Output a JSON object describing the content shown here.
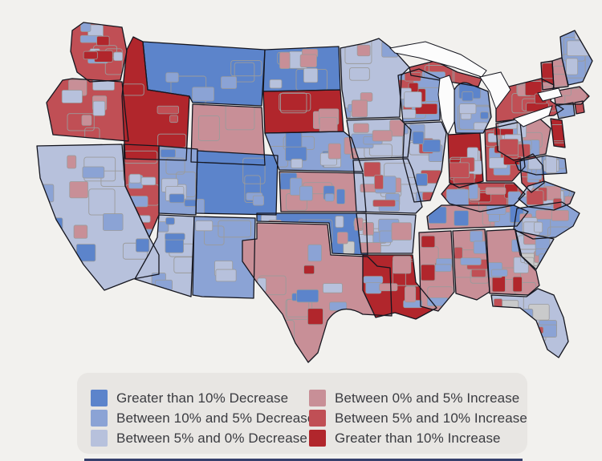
{
  "page": {
    "background": "#f2f1ee",
    "bottom_accent_color": "#36406d"
  },
  "legend": {
    "panel_color": "#e8e6e3",
    "text_color": "#3a3b40",
    "items": [
      {
        "id": "dec_gt10",
        "label": "Greater than 10% Decrease",
        "color": "#5c84cb"
      },
      {
        "id": "dec_5_10",
        "label": "Between 10% and 5% Decrease",
        "color": "#8ba3d5"
      },
      {
        "id": "dec_0_5",
        "label": "Between 5% and 0% Decrease",
        "color": "#b7c1dc"
      },
      {
        "id": "inc_0_5",
        "label": "Between 0% and 5% Increase",
        "color": "#c88f97"
      },
      {
        "id": "inc_5_10",
        "label": "Between 5% and 10% Increase",
        "color": "#c04f55"
      },
      {
        "id": "inc_gt10",
        "label": "Greater than 10% Increase",
        "color": "#b1262c"
      }
    ]
  },
  "map": {
    "type": "choropleth",
    "state_border_color": "#15161f",
    "region_border_color": "#9b9b9b",
    "no_data_color": "#c9cacb",
    "water_color": "#fcfcfc"
  },
  "chart_data": {
    "type": "choropleth_map",
    "regions": [
      {
        "state": "WA",
        "dominant": "inc_5_10",
        "patches": [
          "dec_0_5",
          "dec_5_10",
          "inc_gt10"
        ]
      },
      {
        "state": "OR",
        "dominant": "inc_5_10",
        "patches": [
          "inc_0_5",
          "dec_0_5"
        ]
      },
      {
        "state": "CA",
        "dominant": "dec_0_5",
        "patches": [
          "inc_0_5",
          "dec_5_10",
          "dec_gt10"
        ]
      },
      {
        "state": "NV",
        "dominant": "inc_5_10",
        "patches": [
          "dec_5_10",
          "dec_0_5"
        ]
      },
      {
        "state": "ID",
        "dominant": "inc_gt10",
        "patches": [
          "inc_5_10"
        ]
      },
      {
        "state": "MT",
        "dominant": "dec_gt10",
        "patches": [
          "dec_5_10"
        ]
      },
      {
        "state": "WY",
        "dominant": "inc_0_5",
        "patches": []
      },
      {
        "state": "UT",
        "dominant": "dec_5_10",
        "patches": [
          "dec_0_5",
          "dec_gt10"
        ]
      },
      {
        "state": "CO",
        "dominant": "dec_gt10",
        "patches": [
          "dec_5_10"
        ]
      },
      {
        "state": "AZ",
        "dominant": "dec_0_5",
        "patches": [
          "dec_5_10",
          "dec_gt10"
        ]
      },
      {
        "state": "NM",
        "dominant": "dec_5_10",
        "patches": [
          "dec_0_5"
        ]
      },
      {
        "state": "ND",
        "dominant": "dec_gt10",
        "patches": [
          "dec_0_5",
          "inc_0_5"
        ]
      },
      {
        "state": "SD",
        "dominant": "inc_gt10",
        "patches": [
          "inc_0_5"
        ]
      },
      {
        "state": "NE",
        "dominant": "dec_5_10",
        "patches": [
          "dec_gt10",
          "dec_0_5",
          "inc_0_5"
        ]
      },
      {
        "state": "KS",
        "dominant": "inc_0_5",
        "patches": [
          "dec_gt10",
          "dec_5_10"
        ]
      },
      {
        "state": "OK",
        "dominant": "dec_gt10",
        "patches": [
          "dec_0_5",
          "no_data",
          "inc_0_5"
        ]
      },
      {
        "state": "TX",
        "dominant": "inc_0_5",
        "patches": [
          "dec_0_5",
          "dec_5_10",
          "dec_gt10",
          "inc_gt10"
        ]
      },
      {
        "state": "MN",
        "dominant": "dec_0_5",
        "patches": [
          "dec_5_10",
          "inc_0_5"
        ]
      },
      {
        "state": "IA",
        "dominant": "dec_0_5",
        "patches": [
          "dec_5_10",
          "inc_0_5"
        ]
      },
      {
        "state": "MO",
        "dominant": "dec_0_5",
        "patches": [
          "inc_0_5",
          "dec_5_10",
          "inc_5_10"
        ]
      },
      {
        "state": "AR",
        "dominant": "dec_0_5",
        "patches": [
          "dec_5_10",
          "inc_0_5"
        ]
      },
      {
        "state": "LA",
        "dominant": "inc_gt10",
        "patches": [
          "dec_5_10",
          "inc_0_5"
        ]
      },
      {
        "state": "WI",
        "dominant": "dec_5_10",
        "patches": [
          "inc_5_10",
          "inc_gt10",
          "dec_0_5"
        ]
      },
      {
        "state": "MI",
        "dominant": "dec_5_10",
        "patches": [
          "dec_gt10",
          "dec_0_5"
        ]
      },
      {
        "state": "UP",
        "dominant": "inc_5_10",
        "patches": [
          "dec_5_10"
        ]
      },
      {
        "state": "IL",
        "dominant": "dec_0_5",
        "patches": [
          "dec_5_10",
          "inc_5_10",
          "dec_gt10"
        ]
      },
      {
        "state": "IN",
        "dominant": "inc_gt10",
        "patches": [
          "dec_0_5",
          "inc_5_10"
        ]
      },
      {
        "state": "OH",
        "dominant": "inc_5_10",
        "patches": [
          "dec_5_10",
          "dec_0_5",
          "inc_gt10"
        ]
      },
      {
        "state": "WV",
        "dominant": "inc_5_10",
        "patches": [
          "dec_5_10"
        ]
      },
      {
        "state": "KY",
        "dominant": "inc_5_10",
        "patches": [
          "inc_gt10",
          "inc_0_5",
          "dec_5_10"
        ]
      },
      {
        "state": "VA",
        "dominant": "dec_5_10",
        "patches": [
          "dec_0_5",
          "inc_0_5",
          "inc_5_10"
        ]
      },
      {
        "state": "TN",
        "dominant": "inc_0_5",
        "patches": [
          "dec_5_10",
          "dec_gt10"
        ]
      },
      {
        "state": "NC",
        "dominant": "dec_5_10",
        "patches": [
          "inc_0_5",
          "dec_0_5"
        ]
      },
      {
        "state": "SC",
        "dominant": "dec_0_5",
        "patches": [
          "no_data",
          "inc_0_5",
          "dec_5_10"
        ]
      },
      {
        "state": "GA",
        "dominant": "inc_0_5",
        "patches": [
          "inc_gt10",
          "dec_5_10",
          "dec_0_5"
        ]
      },
      {
        "state": "AL",
        "dominant": "inc_0_5",
        "patches": [
          "inc_5_10",
          "dec_5_10"
        ]
      },
      {
        "state": "MS",
        "dominant": "inc_0_5",
        "patches": [
          "inc_gt10",
          "dec_5_10"
        ]
      },
      {
        "state": "FL",
        "dominant": "dec_0_5",
        "patches": [
          "no_data",
          "inc_0_5",
          "dec_5_10",
          "inc_5_10"
        ]
      },
      {
        "state": "PA",
        "dominant": "inc_0_5",
        "patches": [
          "dec_5_10",
          "dec_0_5",
          "inc_5_10"
        ]
      },
      {
        "state": "NY",
        "dominant": "inc_5_10",
        "patches": [
          "inc_0_5",
          "inc_gt10"
        ]
      },
      {
        "state": "NJ",
        "dominant": "inc_gt10",
        "patches": []
      },
      {
        "state": "MDDE",
        "dominant": "dec_gt10",
        "patches": [
          "dec_5_10",
          "dec_0_5"
        ]
      },
      {
        "state": "VT",
        "dominant": "inc_gt10",
        "patches": []
      },
      {
        "state": "NH",
        "dominant": "inc_0_5",
        "patches": []
      },
      {
        "state": "ME",
        "dominant": "dec_5_10",
        "patches": [
          "dec_0_5"
        ]
      },
      {
        "state": "MA",
        "dominant": "inc_5_10",
        "patches": [
          "inc_0_5"
        ]
      },
      {
        "state": "CT",
        "dominant": "inc_5_10",
        "patches": [
          "dec_5_10"
        ]
      },
      {
        "state": "RI",
        "dominant": "inc_5_10",
        "patches": []
      }
    ]
  }
}
